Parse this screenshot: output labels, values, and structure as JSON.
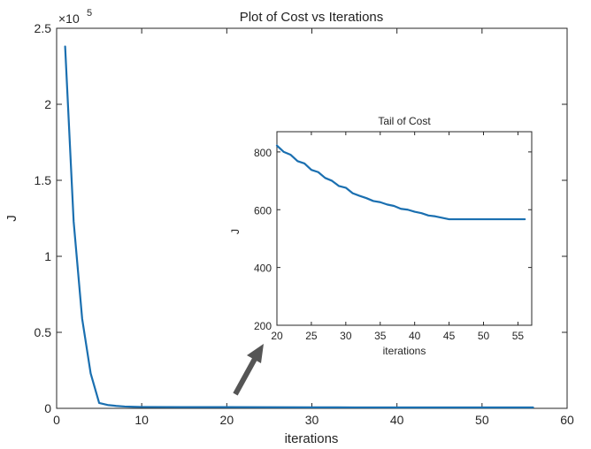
{
  "chart_data": [
    {
      "type": "line",
      "title": "Plot of Cost vs Iterations",
      "xlabel": "iterations",
      "ylabel": "J",
      "y_exponent_label": "×10",
      "y_exponent_value": "5",
      "xlim": [
        0,
        60
      ],
      "ylim": [
        0,
        2.5
      ],
      "xticks": [
        0,
        10,
        20,
        30,
        40,
        50,
        60
      ],
      "yticks": [
        0,
        0.5,
        1,
        1.5,
        2,
        2.5
      ],
      "xtick_labels": [
        "0",
        "10",
        "20",
        "30",
        "40",
        "50",
        "60"
      ],
      "ytick_labels": [
        "0",
        "0.5",
        "1",
        "1.5",
        "2",
        "2.5"
      ],
      "grid": false,
      "color": "#1a6fb0",
      "x": [
        1,
        2,
        3,
        4,
        5,
        6,
        7,
        8,
        9,
        10,
        15,
        20,
        25,
        30,
        35,
        40,
        45,
        50,
        56
      ],
      "y": [
        2.38,
        1.23,
        0.59,
        0.23,
        0.035,
        0.022,
        0.016,
        0.012,
        0.01,
        0.009,
        0.008,
        0.0082,
        0.0073,
        0.0067,
        0.0063,
        0.006,
        0.0057,
        0.0057,
        0.0057
      ]
    },
    {
      "type": "line",
      "title": "Tail of Cost",
      "xlabel": "iterations",
      "ylabel": "J",
      "xlim": [
        20,
        57
      ],
      "ylim": [
        200,
        870
      ],
      "xticks": [
        20,
        25,
        30,
        35,
        40,
        45,
        50,
        55
      ],
      "yticks": [
        200,
        400,
        600,
        800
      ],
      "xtick_labels": [
        "20",
        "25",
        "30",
        "35",
        "40",
        "45",
        "50",
        "55"
      ],
      "ytick_labels": [
        "200",
        "400",
        "600",
        "800"
      ],
      "grid": false,
      "color": "#1a6fb0",
      "x": [
        20,
        21,
        22,
        23,
        24,
        25,
        26,
        27,
        28,
        29,
        30,
        31,
        32,
        33,
        34,
        35,
        36,
        37,
        38,
        39,
        40,
        41,
        42,
        43,
        44,
        45,
        46,
        47,
        48,
        49,
        50,
        51,
        52,
        53,
        54,
        55,
        56
      ],
      "y": [
        822,
        800,
        790,
        768,
        760,
        738,
        730,
        710,
        700,
        682,
        676,
        657,
        648,
        640,
        630,
        626,
        618,
        613,
        603,
        600,
        593,
        588,
        580,
        577,
        572,
        567,
        567,
        567,
        567,
        567,
        567,
        567,
        567,
        567,
        567,
        567,
        567
      ]
    }
  ],
  "arrow_color": "#555555"
}
